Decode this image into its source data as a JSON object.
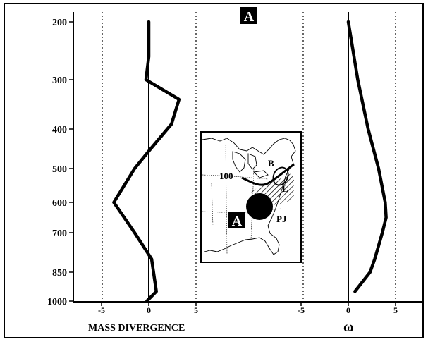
{
  "figure": {
    "badge_top": "A",
    "badge_inset": "A"
  },
  "chart_data": [
    {
      "type": "line",
      "orientation": "vertical profile",
      "xlabel": "MASS DIVERGENCE",
      "ylabel": "",
      "x_ticks": [
        "-5",
        "0",
        "5"
      ],
      "x_tick_values": [
        -5,
        0,
        5
      ],
      "xlim": [
        -7,
        15
      ],
      "y_ticks": [
        "200",
        "300",
        "400",
        "500",
        "600",
        "700",
        "850",
        "1000"
      ],
      "y_tick_values": [
        200,
        300,
        400,
        500,
        600,
        700,
        850,
        1000
      ],
      "ylim": [
        200,
        1000
      ],
      "y_scale": "pressure",
      "grid": "dotted vertical guides at -5 and 5",
      "series": [
        {
          "points": [
            {
              "p": 200,
              "x": 0.0
            },
            {
              "p": 260,
              "x": 0.0
            },
            {
              "p": 300,
              "x": -0.3
            },
            {
              "p": 340,
              "x": 3.2
            },
            {
              "p": 390,
              "x": 2.4
            },
            {
              "p": 450,
              "x": 0.2
            },
            {
              "p": 500,
              "x": -1.5
            },
            {
              "p": 600,
              "x": -3.7
            },
            {
              "p": 700,
              "x": -1.5
            },
            {
              "p": 800,
              "x": 0.3
            },
            {
              "p": 850,
              "x": 0.5
            },
            {
              "p": 950,
              "x": 0.8
            },
            {
              "p": 1000,
              "x": -0.2
            }
          ]
        }
      ]
    },
    {
      "type": "line",
      "orientation": "vertical profile",
      "xlabel": "ω",
      "x_ticks": [
        "-5",
        "0",
        "5"
      ],
      "x_tick_values": [
        -5,
        0,
        5
      ],
      "xlim": [
        -5.5,
        6
      ],
      "ylim": [
        200,
        1000
      ],
      "grid": "dotted vertical guides at -5 and 5",
      "series": [
        {
          "points": [
            {
              "p": 200,
              "x": 0.0
            },
            {
              "p": 300,
              "x": 1.0
            },
            {
              "p": 400,
              "x": 2.1
            },
            {
              "p": 500,
              "x": 3.2
            },
            {
              "p": 600,
              "x": 3.9
            },
            {
              "p": 650,
              "x": 4.0
            },
            {
              "p": 700,
              "x": 3.6
            },
            {
              "p": 800,
              "x": 2.8
            },
            {
              "p": 850,
              "x": 2.3
            },
            {
              "p": 950,
              "x": 0.7
            }
          ]
        }
      ]
    }
  ],
  "inset_map": {
    "labels": {
      "contour": "100",
      "b": "B",
      "l": "L",
      "pj": "PJ"
    }
  }
}
